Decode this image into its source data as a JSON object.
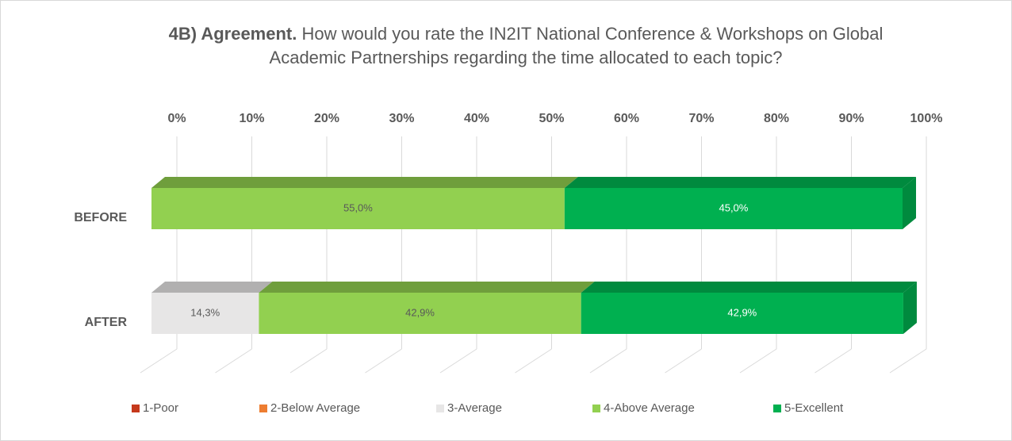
{
  "chart_data": {
    "type": "bar3d_stacked_horizontal",
    "title_prefix": "4B) Agreement.",
    "title_line1": "How would you rate the IN2IT National Conference & Workshops on Global",
    "title_line2": "Academic Partnerships regarding the time allocated to each topic?",
    "categories": [
      "BEFORE",
      "AFTER"
    ],
    "series": [
      {
        "name": "1-Poor",
        "color": "#c5391b",
        "top_color": "#9c2d15",
        "values": [
          0,
          0
        ],
        "value_labels": [
          null,
          null
        ]
      },
      {
        "name": "2-Below Average",
        "color": "#ed7d31",
        "top_color": "#bd6427",
        "values": [
          0,
          0
        ],
        "value_labels": [
          null,
          null
        ]
      },
      {
        "name": "3-Average",
        "color": "#e7e6e6",
        "top_color": "#b1b0b0",
        "values": [
          0,
          14.3
        ],
        "value_labels": [
          null,
          "14,3%"
        ]
      },
      {
        "name": "4-Above Average",
        "color": "#92d050",
        "top_color": "#6f9e3c",
        "values": [
          55,
          42.9
        ],
        "value_labels": [
          "55,0%",
          "42,9%"
        ]
      },
      {
        "name": "5-Excellent",
        "color": "#00b050",
        "top_color": "#008a3e",
        "values": [
          45,
          42.9
        ],
        "value_labels": [
          "45,0%",
          "42,9%"
        ]
      }
    ],
    "xlim": [
      0,
      100
    ],
    "xticks": [
      {
        "value": 0,
        "label": "0%"
      },
      {
        "value": 10,
        "label": "10%"
      },
      {
        "value": 20,
        "label": "20%"
      },
      {
        "value": 30,
        "label": "30%"
      },
      {
        "value": 40,
        "label": "40%"
      },
      {
        "value": 50,
        "label": "50%"
      },
      {
        "value": 60,
        "label": "60%"
      },
      {
        "value": 70,
        "label": "70%"
      },
      {
        "value": 80,
        "label": "80%"
      },
      {
        "value": 90,
        "label": "90%"
      },
      {
        "value": 100,
        "label": "100%"
      }
    ],
    "grid": true,
    "legend": "bottom"
  }
}
